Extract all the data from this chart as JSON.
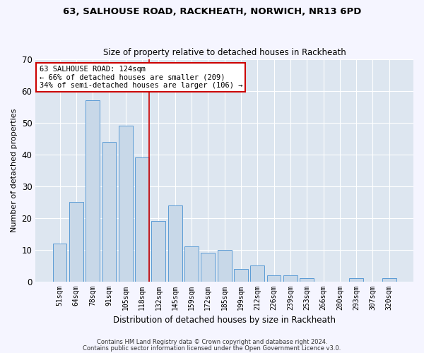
{
  "title1": "63, SALHOUSE ROAD, RACKHEATH, NORWICH, NR13 6PD",
  "title2": "Size of property relative to detached houses in Rackheath",
  "xlabel": "Distribution of detached houses by size in Rackheath",
  "ylabel": "Number of detached properties",
  "categories": [
    "51sqm",
    "64sqm",
    "78sqm",
    "91sqm",
    "105sqm",
    "118sqm",
    "132sqm",
    "145sqm",
    "159sqm",
    "172sqm",
    "185sqm",
    "199sqm",
    "212sqm",
    "226sqm",
    "239sqm",
    "253sqm",
    "266sqm",
    "280sqm",
    "293sqm",
    "307sqm",
    "320sqm"
  ],
  "values": [
    12,
    25,
    57,
    44,
    49,
    39,
    19,
    24,
    11,
    9,
    10,
    4,
    5,
    2,
    2,
    1,
    0,
    0,
    1,
    0,
    1
  ],
  "bar_color": "#c8d8e8",
  "bar_edge_color": "#5b9bd5",
  "vline_index": 5,
  "ylim": [
    0,
    70
  ],
  "yticks": [
    0,
    10,
    20,
    30,
    40,
    50,
    60,
    70
  ],
  "annotation_line1": "63 SALHOUSE ROAD: 124sqm",
  "annotation_line2": "← 66% of detached houses are smaller (209)",
  "annotation_line3": "34% of semi-detached houses are larger (106) →",
  "annotation_box_color": "#ffffff",
  "annotation_box_edge": "#cc0000",
  "vline_color": "#cc0000",
  "footer1": "Contains HM Land Registry data © Crown copyright and database right 2024.",
  "footer2": "Contains public sector information licensed under the Open Government Licence v3.0.",
  "fig_bg_color": "#f5f5ff",
  "plot_bg_color": "#dde6f0"
}
